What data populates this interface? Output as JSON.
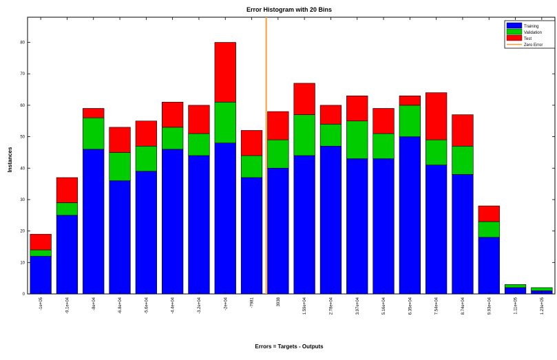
{
  "chart_data": {
    "type": "bar",
    "stacked": true,
    "title": "Error Histogram with 20 Bins",
    "xlabel": "Errors = Targets - Outputs",
    "ylabel": "Instances",
    "categories": [
      "-1e+05",
      "-9.1e+04",
      "-8e+04",
      "-6.8e+04",
      "-5.6e+04",
      "-4.4e+04",
      "-3.2e+04",
      "-2e+04",
      "-7981",
      "3938",
      "1.59e+04",
      "2.78e+04",
      "3.97e+04",
      "5.16e+04",
      "6.35e+04",
      "7.54e+04",
      "8.74e+04",
      "9.93e+04",
      "1.11e+05",
      "1.23e+05"
    ],
    "series": [
      {
        "name": "Training",
        "color": "#0000ff",
        "values": [
          12,
          25,
          46,
          36,
          39,
          46,
          44,
          48,
          37,
          40,
          44,
          47,
          43,
          43,
          50,
          41,
          38,
          18,
          2,
          1
        ]
      },
      {
        "name": "Validation",
        "color": "#00cc00",
        "values": [
          2,
          4,
          10,
          9,
          8,
          7,
          7,
          13,
          7,
          9,
          13,
          7,
          12,
          8,
          10,
          8,
          9,
          5,
          1,
          1
        ]
      },
      {
        "name": "Test",
        "color": "#ff0000",
        "values": [
          5,
          8,
          3,
          8,
          8,
          8,
          9,
          19,
          8,
          9,
          10,
          6,
          8,
          8,
          3,
          15,
          10,
          5,
          0,
          0
        ]
      }
    ],
    "zero_error": {
      "name": "Zero Error",
      "color": "#ff9933",
      "position_bin": 8.55
    },
    "ylim": [
      0,
      88
    ],
    "yticks": [
      0,
      10,
      20,
      30,
      40,
      50,
      60,
      70,
      80
    ],
    "grid": false,
    "legend_position": "top-right"
  }
}
